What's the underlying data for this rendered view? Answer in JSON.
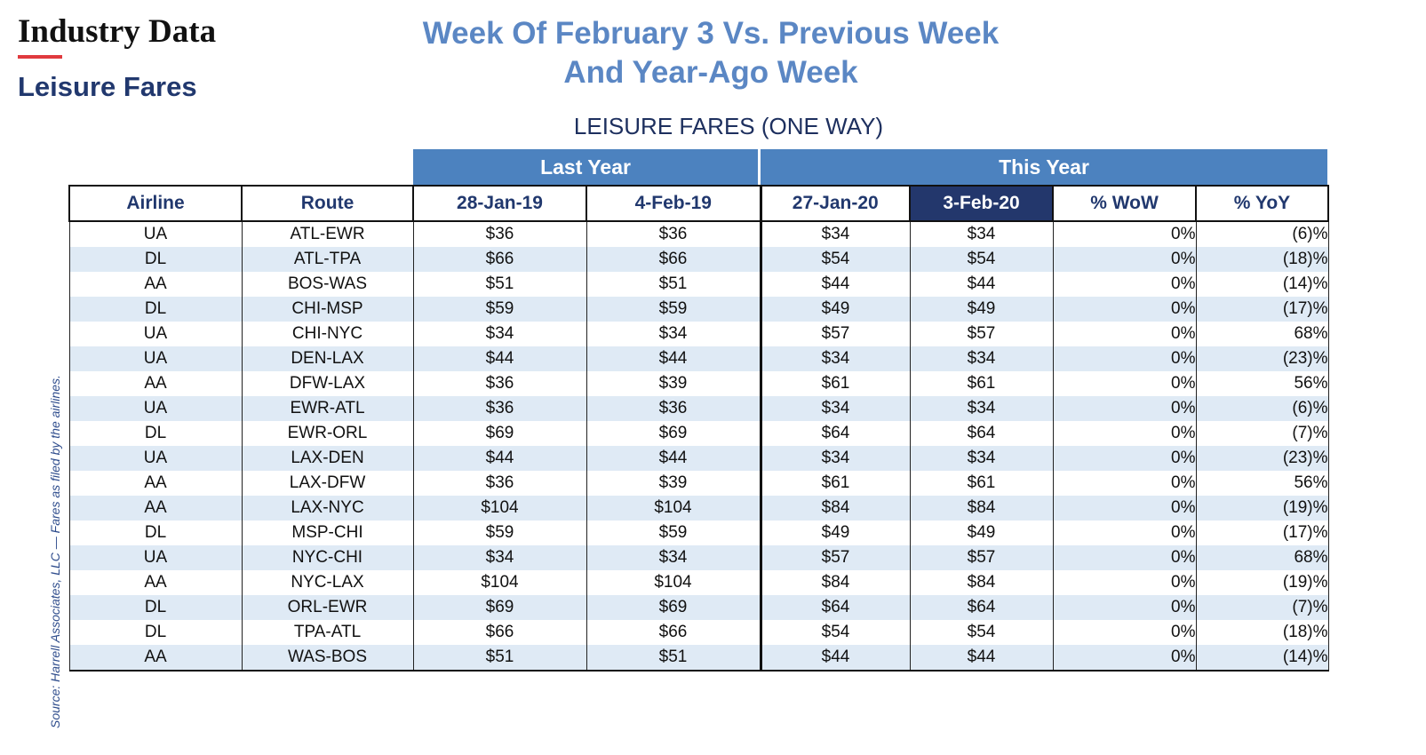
{
  "brand": "Industry Data",
  "section": "Leisure Fares",
  "headline_line1": "Week Of February 3 Vs. Previous Week",
  "headline_line2": "And Year-Ago Week",
  "subtitle": "LEISURE FARES (ONE WAY)",
  "source": "Source: Harrell Associates, LLC — Fares as filed by the airlines.",
  "groups": {
    "last_year": "Last Year",
    "this_year": "This Year"
  },
  "columns": [
    "Airline",
    "Route",
    "28-Jan-19",
    "4-Feb-19",
    "27-Jan-20",
    "3-Feb-20",
    "% WoW",
    "% YoY"
  ],
  "rows": [
    [
      "UA",
      "ATL-EWR",
      "$36",
      "$36",
      "$34",
      "$34",
      "0%",
      "(6)%"
    ],
    [
      "DL",
      "ATL-TPA",
      "$66",
      "$66",
      "$54",
      "$54",
      "0%",
      "(18)%"
    ],
    [
      "AA",
      "BOS-WAS",
      "$51",
      "$51",
      "$44",
      "$44",
      "0%",
      "(14)%"
    ],
    [
      "DL",
      "CHI-MSP",
      "$59",
      "$59",
      "$49",
      "$49",
      "0%",
      "(17)%"
    ],
    [
      "UA",
      "CHI-NYC",
      "$34",
      "$34",
      "$57",
      "$57",
      "0%",
      "68%"
    ],
    [
      "UA",
      "DEN-LAX",
      "$44",
      "$44",
      "$34",
      "$34",
      "0%",
      "(23)%"
    ],
    [
      "AA",
      "DFW-LAX",
      "$36",
      "$39",
      "$61",
      "$61",
      "0%",
      "56%"
    ],
    [
      "UA",
      "EWR-ATL",
      "$36",
      "$36",
      "$34",
      "$34",
      "0%",
      "(6)%"
    ],
    [
      "DL",
      "EWR-ORL",
      "$69",
      "$69",
      "$64",
      "$64",
      "0%",
      "(7)%"
    ],
    [
      "UA",
      "LAX-DEN",
      "$44",
      "$44",
      "$34",
      "$34",
      "0%",
      "(23)%"
    ],
    [
      "AA",
      "LAX-DFW",
      "$36",
      "$39",
      "$61",
      "$61",
      "0%",
      "56%"
    ],
    [
      "AA",
      "LAX-NYC",
      "$104",
      "$104",
      "$84",
      "$84",
      "0%",
      "(19)%"
    ],
    [
      "DL",
      "MSP-CHI",
      "$59",
      "$59",
      "$49",
      "$49",
      "0%",
      "(17)%"
    ],
    [
      "UA",
      "NYC-CHI",
      "$34",
      "$34",
      "$57",
      "$57",
      "0%",
      "68%"
    ],
    [
      "AA",
      "NYC-LAX",
      "$104",
      "$104",
      "$84",
      "$84",
      "0%",
      "(19)%"
    ],
    [
      "DL",
      "ORL-EWR",
      "$69",
      "$69",
      "$64",
      "$64",
      "0%",
      "(7)%"
    ],
    [
      "DL",
      "TPA-ATL",
      "$66",
      "$66",
      "$54",
      "$54",
      "0%",
      "(18)%"
    ],
    [
      "AA",
      "WAS-BOS",
      "$51",
      "$51",
      "$44",
      "$44",
      "0%",
      "(14)%"
    ]
  ]
}
